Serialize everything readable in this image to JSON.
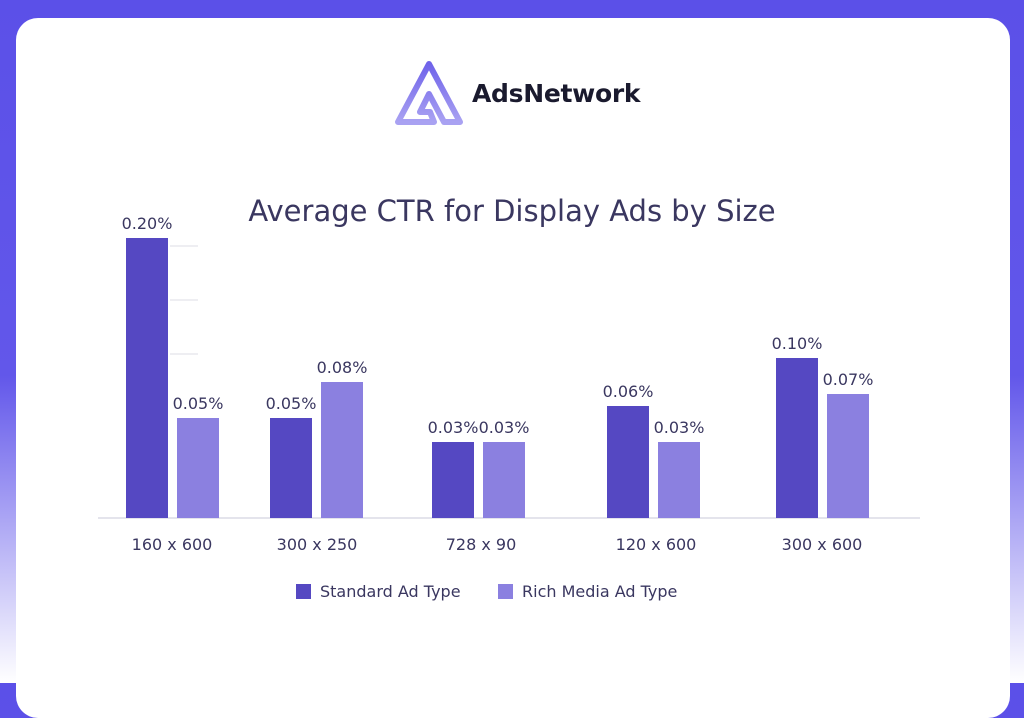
{
  "brand": {
    "name": "AdsNetwork"
  },
  "colors": {
    "standard": "#5548c2",
    "rich": "#8b80e0",
    "text": "#3a3760",
    "axis": "#dcdce6"
  },
  "chart_data": {
    "type": "bar",
    "title": "Average CTR for Display Ads by Size",
    "categories": [
      "160 x 600",
      "300 x 250",
      "728 x 90",
      "120 x 600",
      "300 x 600"
    ],
    "series": [
      {
        "name": "Standard Ad Type",
        "values": [
          0.2,
          0.05,
          0.03,
          0.06,
          0.1
        ],
        "labels": [
          "0.20%",
          "0.05%",
          "0.03%",
          "0.06%",
          "0.10%"
        ]
      },
      {
        "name": "Rich Media Ad Type",
        "values": [
          0.05,
          0.08,
          0.03,
          0.03,
          0.07
        ],
        "labels": [
          "0.05%",
          "0.08%",
          "0.03%",
          "0.03%",
          "0.07%"
        ]
      }
    ],
    "unit": "%",
    "legend": "bottom",
    "grid": false
  }
}
